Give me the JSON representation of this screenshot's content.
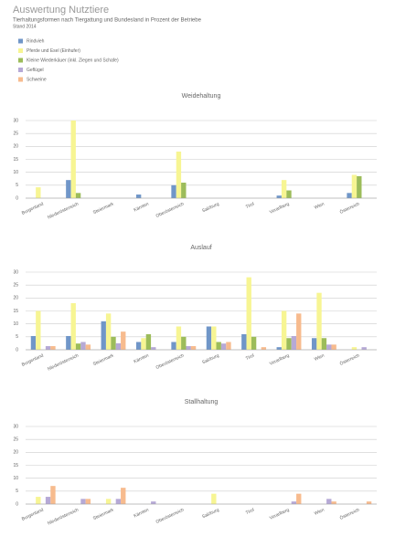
{
  "header": {
    "title": "Auswertung Nutztiere",
    "subtitle": "Tierhaltungsformen nach Tiergattung und Bundesland in Prozent der Betriebe",
    "date": "Stand 2014"
  },
  "chart_data": [
    {
      "type": "bar",
      "title": "Weidehaltung",
      "ylim": [
        0,
        30
      ],
      "yticks": [
        0,
        5,
        10,
        15,
        20,
        25,
        30
      ],
      "grid": true,
      "categories": [
        "Burgenland",
        "Niederösterreich",
        "Steiermark",
        "Kärnten",
        "Oberösterreich",
        "Salzburg",
        "Tirol",
        "Vorarlberg",
        "Wien",
        "Österreich"
      ],
      "series": [
        {
          "name": "Rindvieh",
          "color": "#7096c8",
          "values": [
            0,
            7,
            0,
            1.4,
            5,
            0,
            0,
            1,
            0,
            2
          ]
        },
        {
          "name": "Pferde und Esel (Einhufer)",
          "color": "#f7f593",
          "values": [
            4.2,
            30,
            0,
            0,
            18,
            0,
            0,
            7,
            0,
            9
          ]
        },
        {
          "name": "Kleine Wiederkäuer (inkl. Ziegen und Schafe)",
          "color": "#9cbc5a",
          "values": [
            0,
            2,
            0,
            0,
            6,
            0,
            0,
            3,
            0,
            8.5
          ]
        },
        {
          "name": "Geflügel",
          "color": "#b6a9d6",
          "values": [
            0,
            0,
            0,
            0,
            0,
            0,
            0,
            0,
            0,
            0
          ]
        },
        {
          "name": "Schweine",
          "color": "#f7bb8e",
          "values": [
            0,
            0,
            0,
            0,
            0,
            0,
            0,
            0,
            0,
            0
          ]
        }
      ]
    },
    {
      "type": "bar",
      "title": "Auslauf",
      "ylim": [
        0,
        30
      ],
      "yticks": [
        0,
        5,
        10,
        15,
        20,
        25,
        30
      ],
      "grid": true,
      "categories": [
        "Burgenland",
        "Niederösterreich",
        "Steiermark",
        "Kärnten",
        "Oberösterreich",
        "Salzburg",
        "Tirol",
        "Vorarlberg",
        "Wien",
        "Österreich"
      ],
      "series": [
        {
          "name": "Rindvieh",
          "color": "#7096c8",
          "values": [
            5.3,
            5.3,
            11,
            3,
            3,
            9,
            6,
            1,
            4.5,
            0
          ]
        },
        {
          "name": "Pferde und Esel (Einhufer)",
          "color": "#f7f593",
          "values": [
            15,
            18,
            14,
            4.5,
            9,
            9,
            28,
            15,
            22,
            1
          ]
        },
        {
          "name": "Kleine Wiederkäuer (inkl. Ziegen und Schafe)",
          "color": "#9cbc5a",
          "values": [
            0,
            2.4,
            5,
            6,
            5,
            3,
            5,
            4.5,
            4.5,
            0
          ]
        },
        {
          "name": "Geflügel",
          "color": "#b6a9d6",
          "values": [
            1.4,
            3,
            2.5,
            1,
            1.4,
            2.4,
            0,
            5.3,
            2,
            1
          ]
        },
        {
          "name": "Schweine",
          "color": "#f7bb8e",
          "values": [
            1.4,
            2,
            7,
            0,
            1.4,
            3,
            1,
            14,
            2,
            0
          ]
        }
      ]
    },
    {
      "type": "bar",
      "title": "Stallhaltung",
      "ylim": [
        0,
        30
      ],
      "yticks": [
        0,
        5,
        10,
        15,
        20,
        25,
        30
      ],
      "grid": true,
      "categories": [
        "Burgenland",
        "Niederösterreich",
        "Steiermark",
        "Kärnten",
        "Oberösterreich",
        "Salzburg",
        "Tirol",
        "Vorarlberg",
        "Wien",
        "Österreich"
      ],
      "series": [
        {
          "name": "Rindvieh",
          "color": "#7096c8",
          "values": [
            0,
            0,
            0,
            0,
            0,
            0,
            0,
            0,
            0,
            0
          ]
        },
        {
          "name": "Pferde und Esel (Einhufer)",
          "color": "#f7f593",
          "values": [
            2.8,
            0,
            2,
            0,
            0,
            4,
            0,
            0,
            0,
            0
          ]
        },
        {
          "name": "Kleine Wiederkäuer (inkl. Ziegen und Schafe)",
          "color": "#9cbc5a",
          "values": [
            0,
            0,
            0,
            0,
            0,
            0,
            0,
            0,
            0,
            0
          ]
        },
        {
          "name": "Geflügel",
          "color": "#b6a9d6",
          "values": [
            2.8,
            2,
            2,
            1,
            0,
            0,
            0,
            1,
            2,
            0
          ]
        },
        {
          "name": "Schweine",
          "color": "#f7bb8e",
          "values": [
            7,
            2,
            6.3,
            0,
            0,
            0,
            0,
            4,
            1,
            1
          ]
        }
      ]
    }
  ]
}
